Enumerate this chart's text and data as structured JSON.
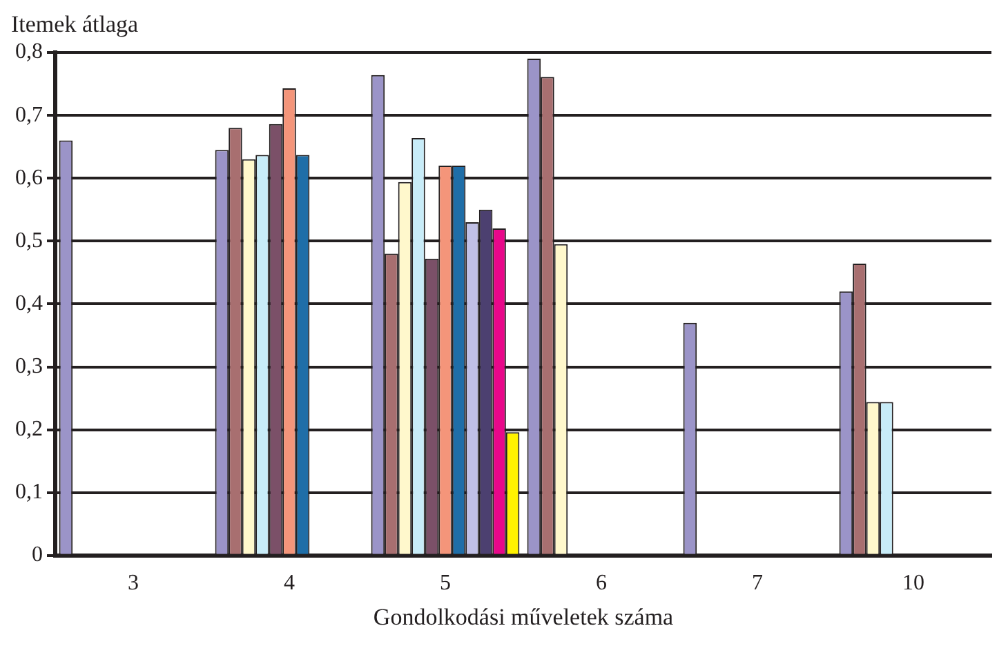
{
  "chart_data": {
    "type": "bar",
    "ylabel": "Itemek átlaga",
    "xlabel": "Gondolkodási műveletek száma",
    "categories": [
      "3",
      "4",
      "5",
      "6",
      "7",
      "10"
    ],
    "series": [
      {
        "color": "#9b94c8",
        "values": [
          0.66,
          0.645,
          0.764,
          0.79,
          0.37,
          0.42
        ]
      },
      {
        "color": "#a86f70",
        "values": [
          null,
          0.68,
          0.48,
          0.761,
          null,
          0.464
        ]
      },
      {
        "color": "#fff8cc",
        "values": [
          null,
          0.63,
          0.594,
          0.495,
          null,
          0.244
        ]
      },
      {
        "color": "#c8ecf8",
        "values": [
          null,
          0.637,
          0.664,
          null,
          null,
          0.244
        ]
      },
      {
        "color": "#7b5068",
        "values": [
          null,
          0.686,
          0.472,
          null,
          null,
          null
        ]
      },
      {
        "color": "#f4957a",
        "values": [
          null,
          0.743,
          0.62,
          null,
          null,
          null
        ]
      },
      {
        "color": "#1f6ea8",
        "values": [
          null,
          0.637,
          0.62,
          null,
          null,
          null
        ]
      },
      {
        "color": "#c0c0e6",
        "values": [
          null,
          null,
          0.53,
          null,
          null,
          null
        ]
      },
      {
        "color": "#4c4070",
        "values": [
          null,
          null,
          0.55,
          null,
          null,
          null
        ]
      },
      {
        "color": "#e8088a",
        "values": [
          null,
          null,
          0.52,
          null,
          null,
          null
        ]
      },
      {
        "color": "#fff200",
        "values": [
          null,
          null,
          0.196,
          null,
          null,
          null
        ]
      }
    ],
    "ylim": [
      0,
      0.8
    ],
    "yticks": [
      0,
      {
        "value": 0.1,
        "label": "0,1"
      },
      {
        "value": 0.2,
        "label": "0,2"
      },
      {
        "value": 0.3,
        "label": "0,3"
      },
      {
        "value": 0.4,
        "label": "0,4"
      },
      {
        "value": 0.5,
        "label": "0,5"
      },
      {
        "value": 0.6,
        "label": "0,6"
      },
      {
        "value": 0.7,
        "label": "0,7"
      },
      {
        "value": 0.8,
        "label": "0,8"
      }
    ],
    "grid": "y",
    "legend": false
  }
}
